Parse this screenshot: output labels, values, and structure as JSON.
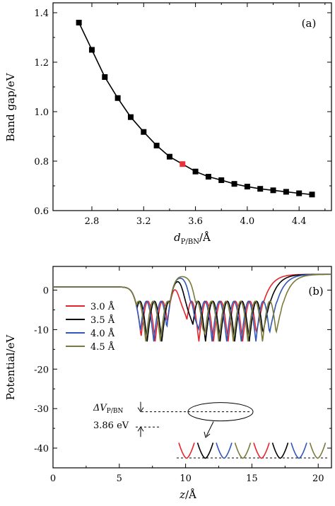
{
  "chart_data": [
    {
      "type": "line",
      "panel_label": "(a)",
      "xlabel": "d_P/BN/Å",
      "ylabel": "Band gap/eV",
      "xlim": [
        2.5,
        4.65
      ],
      "ylim": [
        0.6,
        1.44
      ],
      "xticks": [
        "2.8",
        "3.2",
        "3.6",
        "4.0",
        "4.4"
      ],
      "yticks": [
        "0.6",
        "0.8",
        "1.0",
        "1.2",
        "1.4"
      ],
      "series": [
        {
          "marker": "square",
          "color": "#000000",
          "x": [
            2.7,
            2.8,
            2.9,
            3.0,
            3.1,
            3.2,
            3.3,
            3.4,
            3.5,
            3.6,
            3.7,
            3.8,
            3.9,
            4.0,
            4.1,
            4.2,
            4.3,
            4.4,
            4.5
          ],
          "y": [
            1.36,
            1.25,
            1.14,
            1.055,
            0.978,
            0.918,
            0.863,
            0.818,
            0.788,
            0.758,
            0.737,
            0.723,
            0.708,
            0.697,
            0.688,
            0.682,
            0.676,
            0.67,
            0.665
          ]
        }
      ],
      "highlight_point": {
        "x": 3.5,
        "y": 0.788,
        "color": "#e8323c"
      }
    },
    {
      "type": "line",
      "panel_label": "(b)",
      "xlabel": "z/Å",
      "ylabel": "Potential/eV",
      "xlim": [
        0,
        21
      ],
      "ylim": [
        -45,
        6
      ],
      "xticks": [
        "0",
        "5",
        "10",
        "15",
        "20"
      ],
      "yticks": [
        "0",
        "-10",
        "-20",
        "-30",
        "-40"
      ],
      "series": [
        {
          "name": "3.0 Å",
          "color": "#e8242b",
          "shift": 0.0
        },
        {
          "name": "3.5 Å",
          "color": "#000000",
          "shift": 0.5
        },
        {
          "name": "4.0 Å",
          "color": "#2f57b7",
          "shift": 1.0
        },
        {
          "name": "4.5 Å",
          "color": "#7a7a3a",
          "shift": 1.5
        }
      ],
      "annotations": {
        "delta_label_main": "ΔV",
        "delta_label_sub": "P/BN",
        "delta_value": "3.86 eV",
        "upper_level": -30.8,
        "lower_level": -34.66
      }
    }
  ]
}
